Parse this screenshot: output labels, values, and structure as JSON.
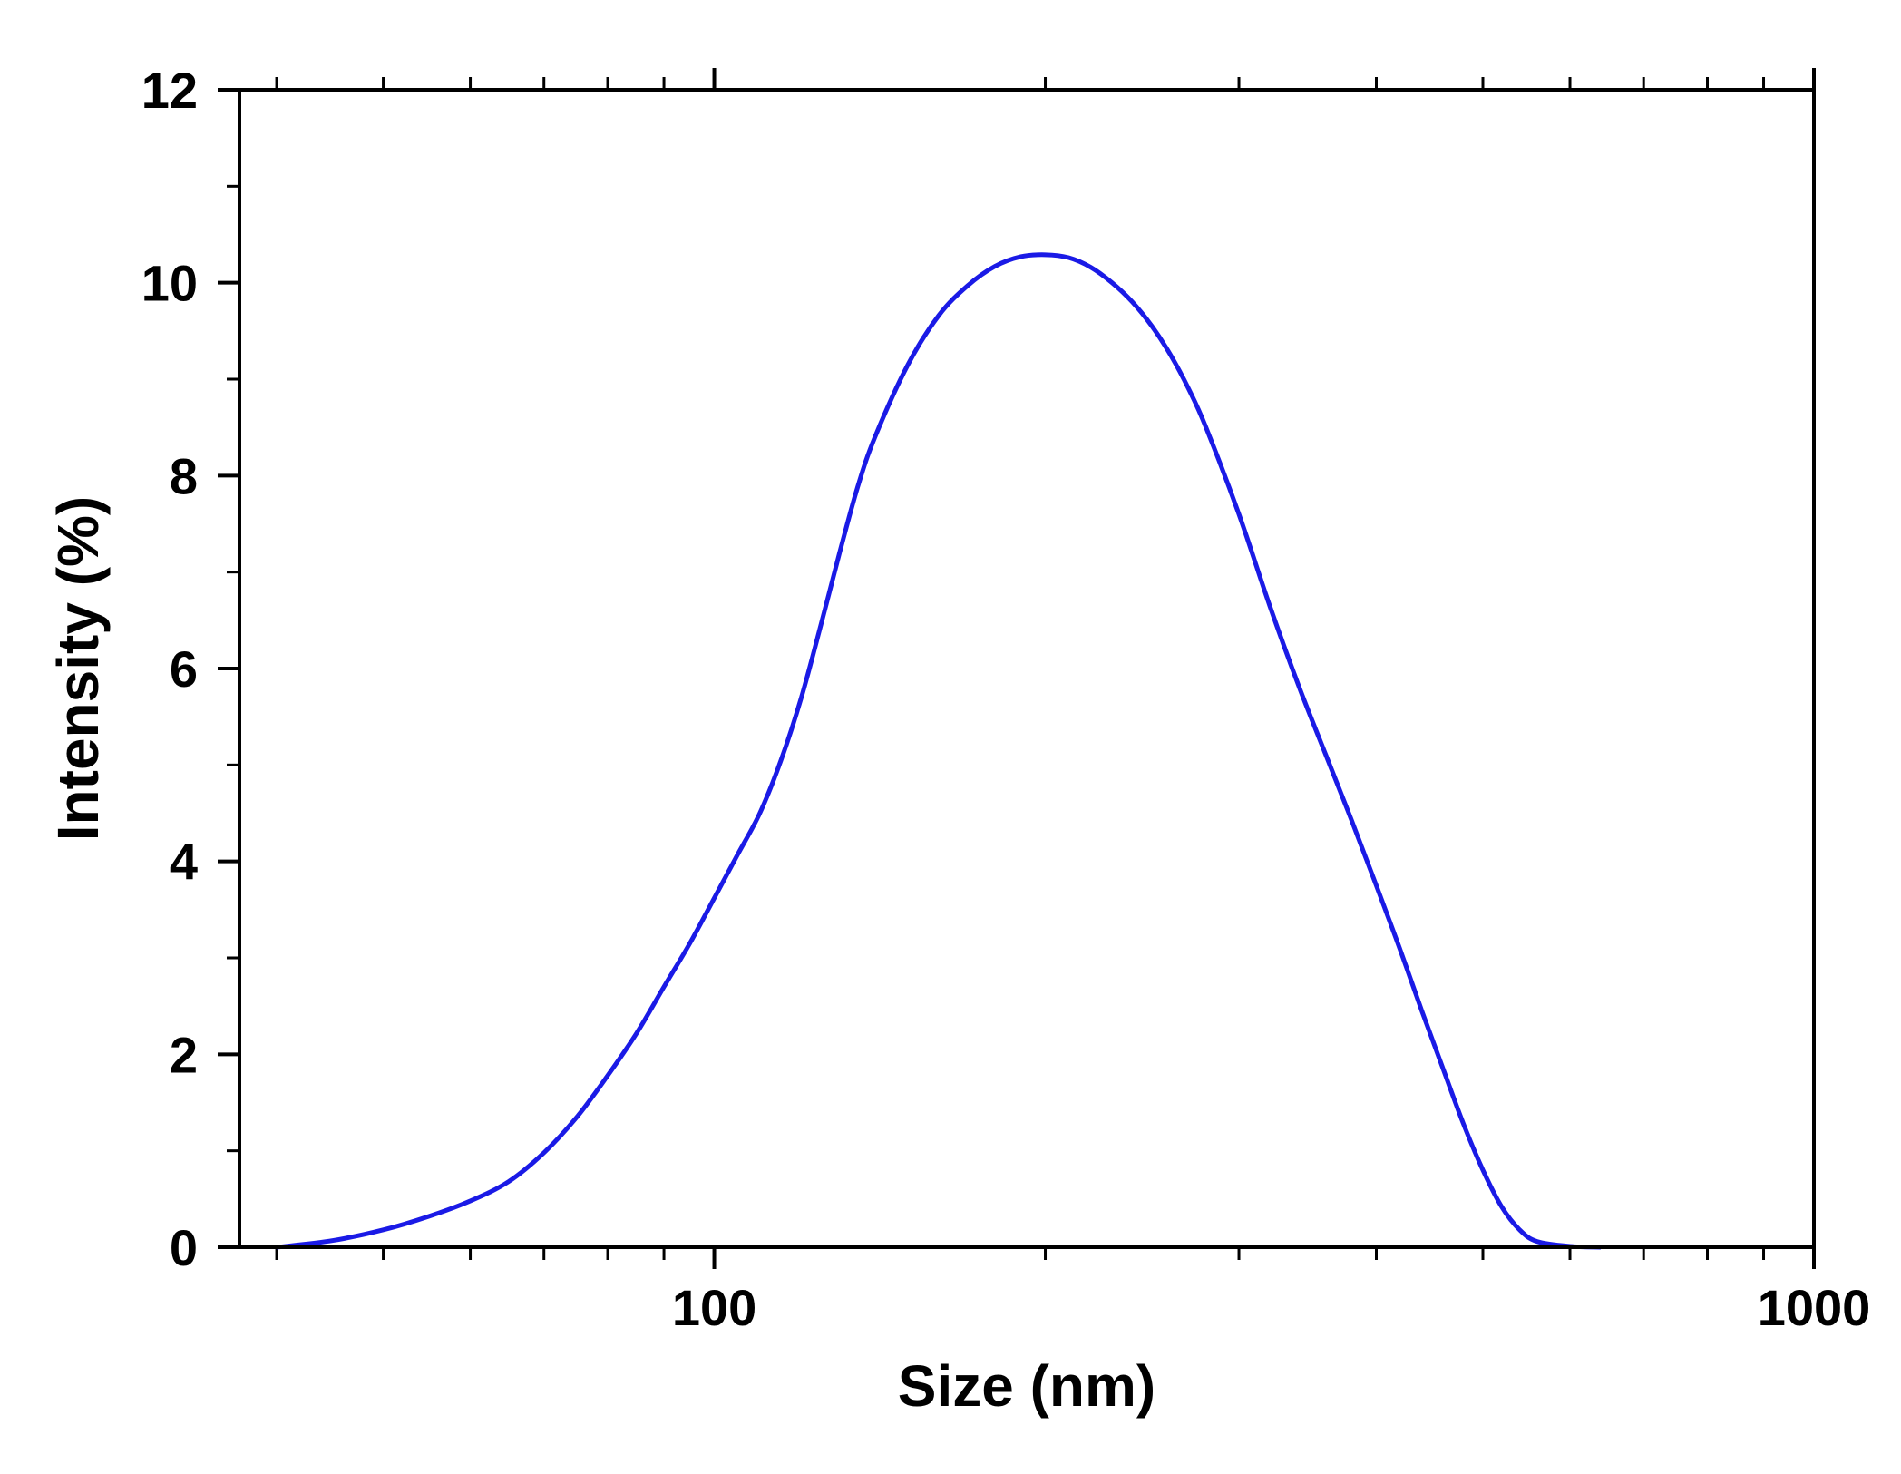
{
  "chart_data": {
    "type": "line",
    "title": "",
    "xlabel": "Size (nm)",
    "ylabel": "Intensity (%)",
    "xscale": "log",
    "xlim": [
      37,
      1000
    ],
    "ylim": [
      0,
      12
    ],
    "x_ticks": [
      100,
      1000
    ],
    "x_tick_labels": [
      "100",
      "1000"
    ],
    "y_ticks": [
      0,
      2,
      4,
      6,
      8,
      10,
      12
    ],
    "y_tick_labels": [
      "0",
      "2",
      "4",
      "6",
      "8",
      "10",
      "12"
    ],
    "grid": false,
    "legend": "none",
    "series": [
      {
        "color": "#1a1ae6",
        "x": [
          40,
          45,
          50,
          55,
          60,
          65,
          70,
          75,
          80,
          85,
          90,
          95,
          100,
          105,
          110,
          115,
          120,
          125,
          130,
          135,
          140,
          150,
          160,
          170,
          180,
          190,
          200,
          210,
          220,
          230,
          240,
          250,
          260,
          270,
          280,
          300,
          320,
          340,
          360,
          380,
          400,
          420,
          440,
          460,
          480,
          500,
          520,
          540,
          560,
          600,
          640
        ],
        "y": [
          0.0,
          0.07,
          0.18,
          0.32,
          0.48,
          0.68,
          0.98,
          1.35,
          1.78,
          2.22,
          2.7,
          3.15,
          3.62,
          4.07,
          4.5,
          5.05,
          5.7,
          6.45,
          7.2,
          7.88,
          8.4,
          9.15,
          9.66,
          9.97,
          10.17,
          10.27,
          10.29,
          10.26,
          10.16,
          10.0,
          9.8,
          9.55,
          9.25,
          8.9,
          8.5,
          7.6,
          6.65,
          5.82,
          5.1,
          4.42,
          3.75,
          3.1,
          2.45,
          1.85,
          1.28,
          0.8,
          0.42,
          0.18,
          0.06,
          0.01,
          0.0
        ]
      }
    ]
  }
}
